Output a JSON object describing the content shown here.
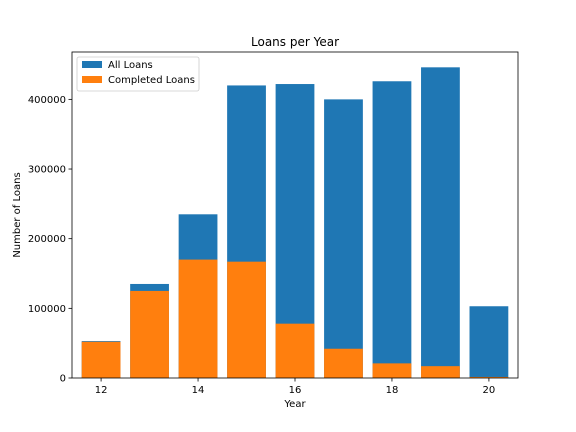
{
  "chart_data": {
    "type": "bar",
    "title": "Loans per Year",
    "xlabel": "Year",
    "ylabel": "Number of Loans",
    "x": [
      12,
      13,
      14,
      15,
      16,
      17,
      18,
      19,
      20
    ],
    "xticks": [
      12,
      14,
      16,
      18,
      20
    ],
    "xlim": [
      11.4,
      20.6
    ],
    "yticks": [
      0,
      100000,
      200000,
      300000,
      400000
    ],
    "ylim": [
      0,
      468000
    ],
    "grid": false,
    "legend_position": "top-left",
    "series": [
      {
        "name": "All Loans",
        "color": "#1f77b4",
        "values": [
          53000,
          135000,
          235000,
          420000,
          422000,
          400000,
          426000,
          446000,
          103000
        ]
      },
      {
        "name": "Completed Loans",
        "color": "#ff7f0e",
        "values": [
          52000,
          125000,
          170000,
          167000,
          78000,
          42000,
          21000,
          17000,
          1500
        ]
      }
    ]
  }
}
